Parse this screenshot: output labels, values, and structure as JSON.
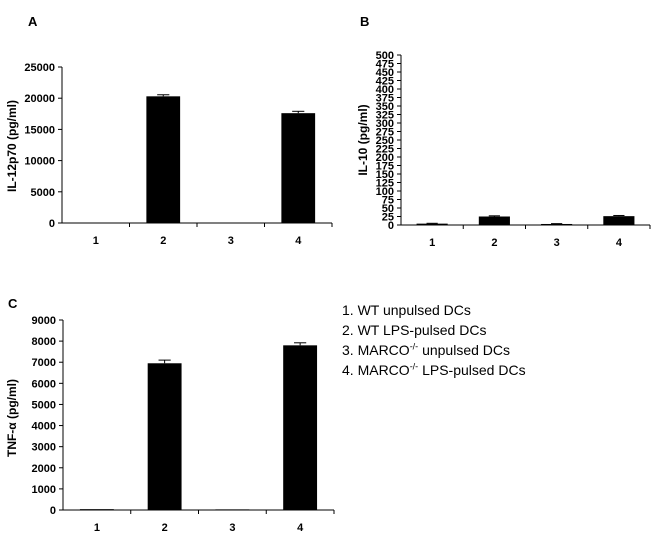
{
  "chart_data": [
    {
      "type": "bar",
      "panel": "A",
      "ylabel": "IL-12p70 (pg/ml)",
      "categories": [
        "1",
        "2",
        "3",
        "4"
      ],
      "yticks": [
        "0",
        "5000",
        "10000",
        "15000",
        "20000",
        "25000"
      ],
      "ylim": [
        0,
        25000
      ],
      "values": [
        0,
        20300,
        0,
        17600
      ],
      "errors": [
        0,
        250,
        0,
        300
      ],
      "bar_color": "#000000"
    },
    {
      "type": "bar",
      "panel": "B",
      "ylabel": "IL-10 (pg/ml)",
      "categories": [
        "1",
        "2",
        "3",
        "4"
      ],
      "yticks": [
        "0",
        "25",
        "50",
        "75",
        "100",
        "125",
        "150",
        "175",
        "200",
        "225",
        "250",
        "275",
        "300",
        "325",
        "350",
        "375",
        "400",
        "425",
        "450",
        "475",
        "500"
      ],
      "ylim": [
        0,
        500
      ],
      "values": [
        4,
        25,
        3,
        26
      ],
      "errors": [
        1,
        2,
        1,
        2
      ],
      "bar_color": "#000000"
    },
    {
      "type": "bar",
      "panel": "C",
      "ylabel": "TNF-α (pg/ml)",
      "categories": [
        "1",
        "2",
        "3",
        "4"
      ],
      "yticks": [
        "0",
        "1000",
        "2000",
        "3000",
        "4000",
        "5000",
        "6000",
        "7000",
        "8000",
        "9000"
      ],
      "ylim": [
        0,
        9000
      ],
      "values": [
        40,
        6950,
        30,
        7800
      ],
      "errors": [
        0,
        150,
        0,
        120
      ],
      "bar_color": "#000000"
    }
  ],
  "legend": {
    "items": [
      {
        "prefix": "1. WT unpulsed DCs",
        "sup": "",
        "suffix": ""
      },
      {
        "prefix": "2. WT LPS-pulsed DCs",
        "sup": "",
        "suffix": ""
      },
      {
        "prefix": "3. MARCO",
        "sup": "-/-",
        "suffix": " unpulsed DCs"
      },
      {
        "prefix": "4. MARCO",
        "sup": "-/-",
        "suffix": " LPS-pulsed DCs"
      }
    ]
  }
}
